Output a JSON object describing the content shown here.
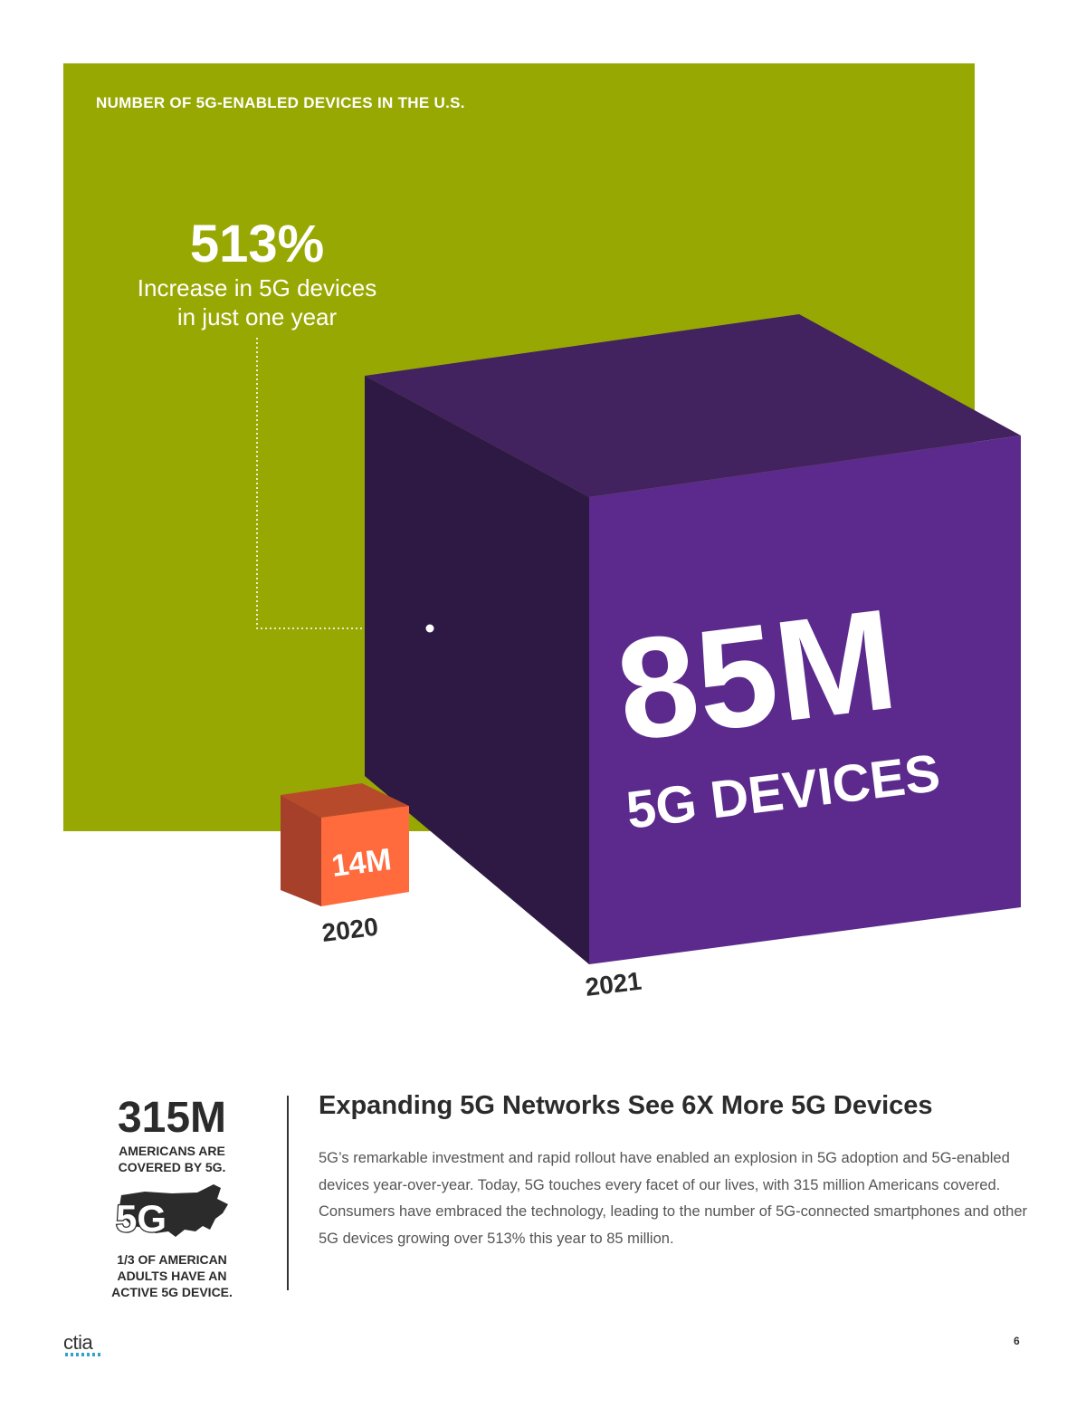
{
  "chart": {
    "title": "NUMBER OF 5G-ENABLED DEVICES IN THE U.S.",
    "highlight_value": "513%",
    "highlight_caption": "Increase in 5G devices\nin just one year",
    "bars": [
      {
        "year": "2020",
        "label": "14M",
        "value_millions": 14
      },
      {
        "year": "2021",
        "label": "85M",
        "sublabel": "5G DEVICES",
        "value_millions": 85
      }
    ],
    "colors": {
      "panel": "#98a803",
      "small_front": "#ff6b3d",
      "small_top": "#b84a2c",
      "small_side": "#a6402a",
      "big_front": "#5b2a8c",
      "big_top": "#42225f",
      "big_side": "#2e1944"
    }
  },
  "sidebar": {
    "big_number": "315M",
    "covered_text": "AMERICANS ARE\nCOVERED BY 5G.",
    "icon_label": "5G",
    "icon": "us-map-icon",
    "adults_text": "1/3 OF AMERICAN\nADULTS HAVE AN\nACTIVE 5G DEVICE."
  },
  "article": {
    "title": "Expanding 5G Networks See 6X More 5G Devices",
    "body": "5G’s remarkable investment and rapid rollout have enabled an explosion in 5G adoption and 5G-enabled devices year-over-year. Today, 5G touches every facet of our lives, with 315 million Americans covered. Consumers have embraced the technology, leading to the number of 5G-connected smartphones and other 5G devices growing over 513% this year to 85 million."
  },
  "footer": {
    "logo": "ctia",
    "page_number": "6"
  }
}
